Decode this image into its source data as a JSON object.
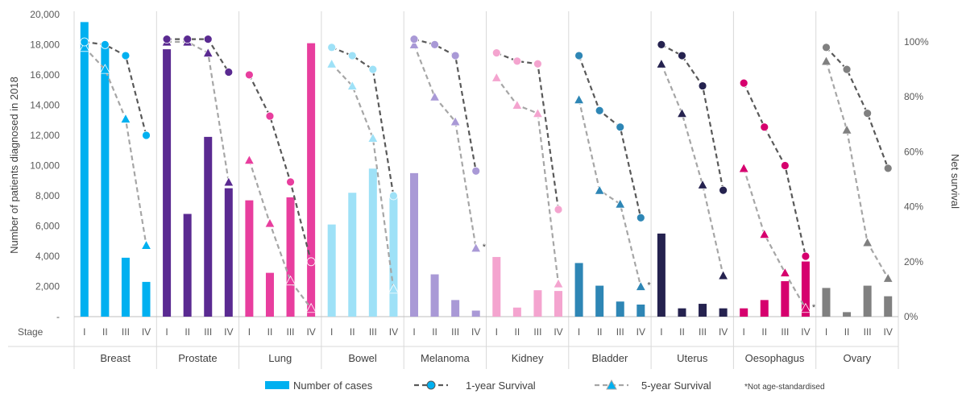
{
  "chart_data": {
    "type": "bar",
    "ylabel": "Number of patients diagnosed in 2018",
    "y2label": "Net survival",
    "stage_label": "Stage",
    "ylim": [
      0,
      20000
    ],
    "y_ticks": [
      "-",
      "2,000",
      "4,000",
      "6,000",
      "8,000",
      "10,000",
      "12,000",
      "14,000",
      "16,000",
      "18,000",
      "20,000"
    ],
    "y2lim": [
      0,
      100
    ],
    "y2_ticks": [
      "0%",
      "20%",
      "40%",
      "60%",
      "80%",
      "100%"
    ],
    "stages": [
      "I",
      "II",
      "III",
      "IV"
    ],
    "legend": {
      "cases": "Number of cases",
      "one_year": "1-year Survival",
      "five_year": "5-year Survival",
      "note": "*Not age-standardised"
    },
    "line_colors": {
      "one_year": "#595959",
      "five_year": "#a6a6a6"
    },
    "groups": [
      {
        "name": "Breast",
        "color": "#00b0f0",
        "cases": [
          19500,
          18000,
          3900,
          2300
        ],
        "one_year": [
          100,
          99,
          95,
          66
        ],
        "five_year": [
          98,
          90,
          72,
          26
        ]
      },
      {
        "name": "Prostate",
        "color": "#5a2a91",
        "cases": [
          17700,
          6800,
          11900,
          8500
        ],
        "one_year": [
          101,
          101,
          101,
          89
        ],
        "five_year": [
          100,
          100,
          96,
          49
        ]
      },
      {
        "name": "Lung",
        "color": "#e83e9e",
        "cases": [
          7700,
          2900,
          7900,
          18100
        ],
        "one_year": [
          88,
          73,
          49,
          20
        ],
        "five_year": [
          57,
          34,
          13,
          3
        ]
      },
      {
        "name": "Bowel",
        "color": "#9ee1f7",
        "cases": [
          6100,
          8200,
          9800,
          8100
        ],
        "one_year": [
          98,
          95,
          90,
          44
        ],
        "five_year": [
          92,
          84,
          65,
          10
        ]
      },
      {
        "name": "Melanoma",
        "color": "#a999d6",
        "cases": [
          9500,
          2800,
          1100,
          400
        ],
        "one_year": [
          101,
          99,
          95,
          53
        ],
        "five_year": [
          99,
          80,
          71,
          25
        ]
      },
      {
        "name": "Kidney",
        "color": "#f4a4cf",
        "cases": [
          3950,
          600,
          1750,
          1700
        ],
        "one_year": [
          96,
          93,
          92,
          39
        ],
        "five_year": [
          87,
          77,
          74,
          12
        ]
      },
      {
        "name": "Bladder",
        "color": "#2e86b5",
        "cases": [
          3550,
          2050,
          1000,
          800
        ],
        "one_year": [
          95,
          75,
          69,
          36
        ],
        "five_year": [
          79,
          46,
          41,
          11
        ]
      },
      {
        "name": "Uterus",
        "color": "#25224f",
        "cases": [
          5500,
          550,
          850,
          550
        ],
        "one_year": [
          99,
          95,
          84,
          46
        ],
        "five_year": [
          92,
          74,
          48,
          15
        ]
      },
      {
        "name": "Oesophagus",
        "color": "#d6006e",
        "cases": [
          550,
          1100,
          2350,
          3650
        ],
        "one_year": [
          85,
          69,
          55,
          22
        ],
        "five_year": [
          54,
          30,
          16,
          3
        ]
      },
      {
        "name": "Ovary",
        "color": "#808080",
        "cases": [
          1900,
          300,
          2050,
          1350
        ],
        "one_year": [
          98,
          90,
          74,
          54
        ],
        "five_year": [
          93,
          68,
          27,
          14
        ]
      }
    ],
    "annotations": [
      {
        "group": "Melanoma",
        "stage": "IV",
        "text": "*"
      },
      {
        "group": "Bladder",
        "stage": "IV",
        "text": "*"
      },
      {
        "group": "Oesophagus",
        "stage": "IV",
        "text": "*"
      }
    ],
    "grid": "vertical separators between groups"
  }
}
